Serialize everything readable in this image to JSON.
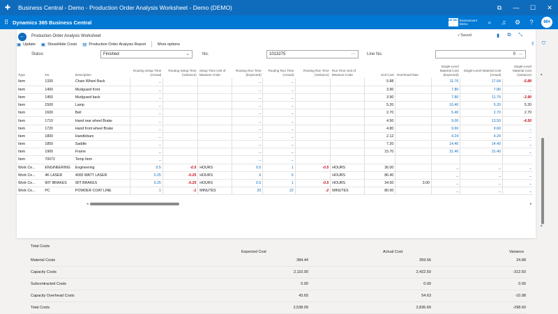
{
  "window": {
    "title": "Business Central - Demo - Production Order Analysis Worksheet - Demo (DEMO)"
  },
  "appbar": {
    "name": "Dynamics 365 Business Central",
    "env_badge": "DE MO",
    "env_line1": "Environment",
    "env_line2": "Demo",
    "avatar": "MH"
  },
  "page": {
    "title": "Production Order Analysis Worksheet",
    "saved": "Saved"
  },
  "filters": {
    "status_label": "Status",
    "status_value": "Finished",
    "no_label": "No.",
    "no_value": "1013275",
    "lineno_label": "Line No.",
    "lineno_value": "0"
  },
  "actions": {
    "update": "Update",
    "showhide": "Show/Hide Costs",
    "report": "Production Order Analysis Report",
    "more": "More options"
  },
  "columns": [
    "Type",
    "No.",
    "Description",
    "Routing Setup Time (Actual)",
    "Routing Setup Time (Variance)",
    "Setup Time Unit of Measure Code",
    "Routing Run Time (Expected)",
    "Routing Run Time (Actual)",
    "Routing Run Time (Variance)",
    "Run Time Unit of Measure Code",
    "Unit Cost",
    "Overhead Rate",
    "Single-Level Material Cost (Expected)",
    "Single-Level Material Cost (Actual)",
    "Single-Level Material Cost (Variance)"
  ],
  "rows": [
    [
      "Item",
      "1330",
      "Chain Wheel Back",
      "_",
      "",
      "",
      "_",
      "_",
      "",
      "",
      "5.88",
      "",
      "11.76",
      "17.64",
      "-5.88"
    ],
    [
      "Item",
      "1400",
      "Mudguard front",
      "_",
      "",
      "",
      "_",
      "_",
      "",
      "",
      "3.90",
      "",
      "7.80",
      "7.80",
      "_"
    ],
    [
      "Item",
      "1450",
      "Mudguard back",
      "_",
      "",
      "",
      "_",
      "_",
      "",
      "",
      "3.90",
      "",
      "7.80",
      "11.70",
      "-3.90"
    ],
    [
      "Item",
      "1500",
      "Lamp",
      "_",
      "",
      "",
      "_",
      "_",
      "",
      "",
      "5.20",
      "",
      "10.40",
      "5.20",
      "5.20"
    ],
    [
      "Item",
      "1600",
      "Bell",
      "_",
      "",
      "",
      "_",
      "_",
      "",
      "",
      "2.70",
      "",
      "5.40",
      "2.70",
      "2.70"
    ],
    [
      "Item",
      "1710",
      "Hand rear wheel Brake",
      "_",
      "",
      "",
      "_",
      "_",
      "",
      "",
      "4.50",
      "",
      "9.00",
      "13.50",
      "-4.50"
    ],
    [
      "Item",
      "1720",
      "Hand front wheel Brake",
      "_",
      "",
      "",
      "_",
      "_",
      "",
      "",
      "4.80",
      "",
      "9.60",
      "9.60",
      "_"
    ],
    [
      "Item",
      "1800",
      "Handlebars",
      "_",
      "",
      "",
      "_",
      "_",
      "",
      "",
      "2.12",
      "",
      "4.24",
      "4.24",
      "_"
    ],
    [
      "Item",
      "1850",
      "Saddle",
      "_",
      "",
      "",
      "_",
      "_",
      "",
      "",
      "7.20",
      "",
      "14.40",
      "14.40",
      "_"
    ],
    [
      "Item",
      "1900",
      "Frame",
      "_",
      "",
      "",
      "_",
      "_",
      "",
      "",
      "15.70",
      "",
      "31.40",
      "31.40",
      "_"
    ],
    [
      "Item",
      "70072",
      "Temp Item",
      "_",
      "",
      "",
      "_",
      "_",
      "",
      "",
      "",
      "",
      "",
      "",
      ""
    ],
    [
      "Work Ce...",
      "ENGINEERING",
      "Engineering",
      "0.5",
      "-0.5",
      "HOURS",
      "0.5",
      "1",
      "-0.5",
      "HOURS",
      "36.00",
      "",
      "_",
      "_",
      "_"
    ],
    [
      "Work Ce...",
      "4K LASER",
      "4000 WATT LASER",
      "0.25",
      "-0.25",
      "HOURS",
      "6",
      "6",
      "",
      "HOURS",
      "86.40",
      "",
      "_",
      "_",
      "_"
    ],
    [
      "Work Ce...",
      "90T BRAKES",
      "90T BRAKES",
      "0.25",
      "-0.25",
      "HOURS",
      "0.5",
      "1",
      "-0.5",
      "HOURS",
      "34.50",
      "3.00",
      "_",
      "_",
      "_"
    ],
    [
      "Work Ce...",
      "PC",
      "POWDER COAT LINE",
      "1",
      "-1",
      "MINUTES",
      "20",
      "22",
      "-2",
      "MINUTES",
      "80.00",
      "",
      "_",
      "_",
      "_"
    ]
  ],
  "totals": {
    "heading": "Total Costs",
    "col_expected": "Expected Cost",
    "col_actual": "Actual Cost",
    "col_variance": "Variance",
    "rows": [
      {
        "label": "Material Costs",
        "expected": "384.44",
        "actual": "359.56",
        "variance": "24.88"
      },
      {
        "label": "Capacity Costs",
        "expected": "2,110.00",
        "actual": "2,422.50",
        "variance": "-312.50"
      },
      {
        "label": "Subcontracted Costs",
        "expected": "0.00",
        "actual": "0.00",
        "variance": "0.00"
      },
      {
        "label": "Capacity Overhead Costs",
        "expected": "43.65",
        "actual": "54.63",
        "variance": "-10.98"
      },
      {
        "label": "Total Costs",
        "expected": "2,538.09",
        "actual": "2,836.69",
        "variance": "-298.60"
      }
    ]
  },
  "colors": {
    "brand": "#0078d4",
    "titlebar": "#0f6cbd",
    "negative": "#c50f1f",
    "link": "#0f6cbd"
  },
  "icons": [
    "app-logo-icon",
    "browser-tab-icon",
    "minimize-icon",
    "maximize-icon",
    "close-icon",
    "waffle-icon",
    "search-icon",
    "bell-icon",
    "gear-icon",
    "help-icon",
    "back-icon",
    "check-icon",
    "bookmark-icon",
    "open-new-icon",
    "collapse-icon",
    "update-icon",
    "show-hide-icon",
    "report-icon",
    "share-icon",
    "filter-icon"
  ]
}
